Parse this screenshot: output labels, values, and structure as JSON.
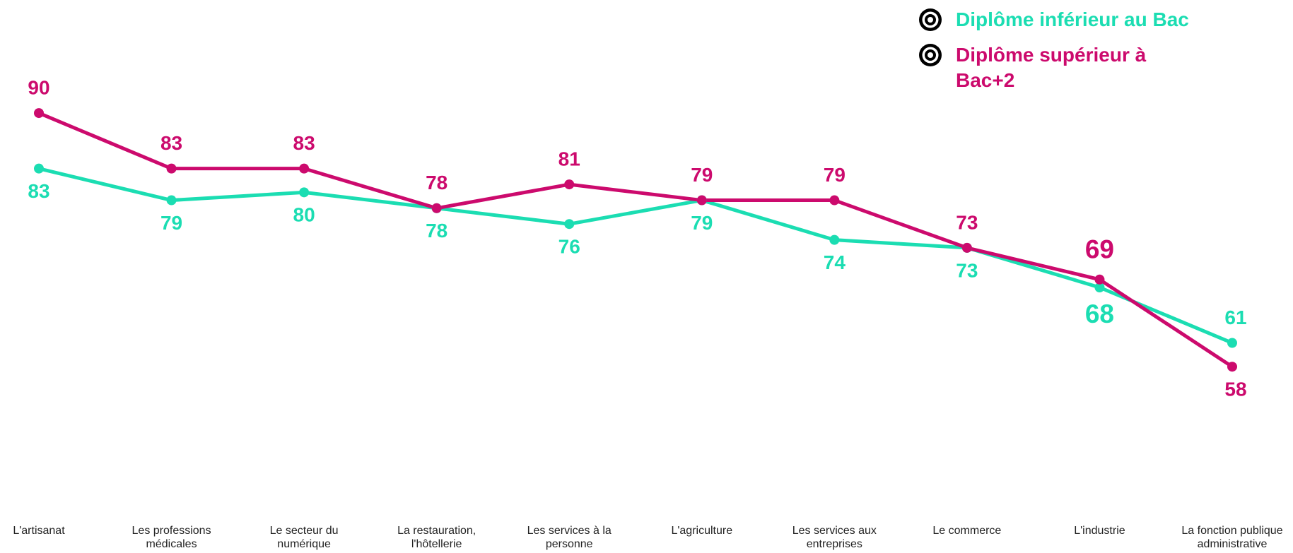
{
  "chart_data": {
    "type": "line",
    "categories": [
      "L'artisanat",
      "Les professions médicales",
      "Le secteur du numérique",
      "La restauration, l'hôtellerie",
      "Les services à la personne",
      "L'agriculture",
      "Les services aux entreprises",
      "Le commerce",
      "L'industrie",
      "La fonction publique administrative"
    ],
    "series": [
      {
        "name": "Diplôme inférieur au Bac",
        "color": "#1bddb2",
        "values": [
          83,
          79,
          80,
          78,
          76,
          79,
          74,
          73,
          68,
          61
        ]
      },
      {
        "name": "Diplôme supérieur à Bac+2",
        "color": "#cc0a6d",
        "values": [
          90,
          83,
          83,
          78,
          81,
          79,
          79,
          73,
          69,
          58
        ]
      }
    ],
    "ylim": [
      50,
      95
    ],
    "grid": false,
    "legend": "top-right"
  }
}
